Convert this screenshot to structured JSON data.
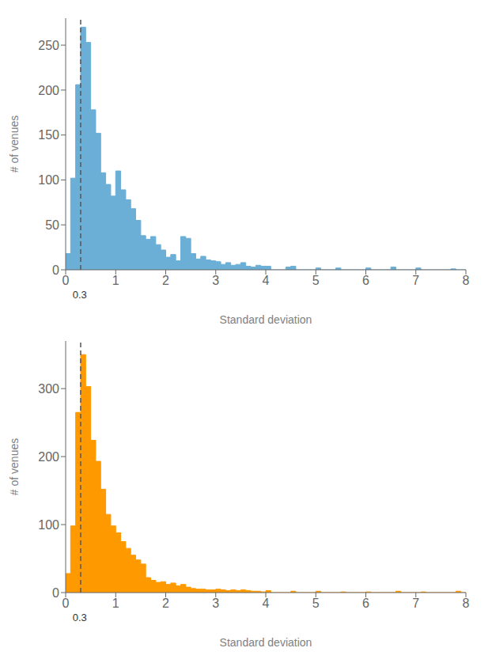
{
  "chart_data": [
    {
      "type": "histogram",
      "xlabel": "Standard deviation",
      "ylabel": "# of venues",
      "color": "#6baed6",
      "grid": false,
      "xlim": [
        0,
        8
      ],
      "ylim": [
        0,
        280
      ],
      "xticks": [
        0,
        1,
        2,
        3,
        4,
        5,
        6,
        7,
        8
      ],
      "yticks": [
        0,
        50,
        100,
        150,
        200,
        250
      ],
      "bins": [
        0,
        0.1,
        0.2,
        0.3,
        0.4,
        0.5,
        0.6,
        0.7,
        0.8,
        0.9,
        1,
        1.1,
        1.2,
        1.3,
        1.4,
        1.5,
        1.6,
        1.7,
        1.8,
        1.9,
        2,
        2.1,
        2.2,
        2.3,
        2.4,
        2.5,
        2.6,
        2.7,
        2.8,
        2.9,
        3,
        3.1,
        3.2,
        3.3,
        3.4,
        3.5,
        3.6,
        3.7,
        3.8,
        3.9,
        4,
        4.1,
        4.2,
        4.3,
        4.4,
        4.5,
        4.6,
        4.7,
        4.8,
        4.9,
        5,
        5.1,
        5.2,
        5.3,
        5.4,
        5.5,
        5.6,
        5.7,
        5.8,
        5.9,
        6,
        6.1,
        6.2,
        6.3,
        6.4,
        6.5,
        6.6,
        6.7,
        6.8,
        6.9,
        7,
        7.1,
        7.2,
        7.3,
        7.4,
        7.5,
        7.6,
        7.7,
        7.8,
        7.9,
        8
      ],
      "counts": [
        18,
        102,
        206,
        270,
        253,
        178,
        152,
        108,
        95,
        82,
        110,
        89,
        78,
        68,
        55,
        38,
        34,
        37,
        28,
        22,
        14,
        17,
        10,
        37,
        35,
        18,
        12,
        15,
        11,
        10,
        9,
        6,
        8,
        5,
        6,
        8,
        4,
        3,
        5,
        4,
        4,
        0,
        0,
        0,
        3,
        4,
        0,
        0,
        0,
        0,
        2,
        0,
        0,
        0,
        2,
        0,
        0,
        0,
        0,
        0,
        2,
        0,
        0,
        0,
        0,
        3,
        0,
        0,
        0,
        0,
        2,
        0,
        0,
        0,
        0,
        0,
        0,
        1,
        0,
        0
      ],
      "annotations": [
        {
          "text": "0.3",
          "x": 0.28
        }
      ],
      "vlines": [
        {
          "x": 0.3,
          "color": "#555555",
          "line_style": "dashed"
        }
      ]
    },
    {
      "type": "histogram",
      "xlabel": "Standard deviation",
      "ylabel": "# of venues",
      "color": "#ff9900",
      "grid": false,
      "xlim": [
        0,
        8
      ],
      "ylim": [
        0,
        370
      ],
      "xticks": [
        0,
        1,
        2,
        3,
        4,
        5,
        6,
        7,
        8
      ],
      "yticks": [
        0,
        100,
        200,
        300
      ],
      "bins": [
        0,
        0.1,
        0.2,
        0.3,
        0.4,
        0.5,
        0.6,
        0.7,
        0.8,
        0.9,
        1,
        1.1,
        1.2,
        1.3,
        1.4,
        1.5,
        1.6,
        1.7,
        1.8,
        1.9,
        2,
        2.1,
        2.2,
        2.3,
        2.4,
        2.5,
        2.6,
        2.7,
        2.8,
        2.9,
        3,
        3.1,
        3.2,
        3.3,
        3.4,
        3.5,
        3.6,
        3.7,
        3.8,
        3.9,
        4,
        4.1,
        4.2,
        4.3,
        4.4,
        4.5,
        4.6,
        4.7,
        4.8,
        4.9,
        5,
        5.1,
        5.2,
        5.3,
        5.4,
        5.5,
        5.6,
        5.7,
        5.8,
        5.9,
        6,
        6.1,
        6.2,
        6.3,
        6.4,
        6.5,
        6.6,
        6.7,
        6.8,
        6.9,
        7,
        7.1,
        7.2,
        7.3,
        7.4,
        7.5,
        7.6,
        7.7,
        7.8,
        7.9,
        8
      ],
      "counts": [
        28,
        98,
        265,
        350,
        303,
        224,
        193,
        152,
        115,
        98,
        88,
        75,
        65,
        55,
        48,
        42,
        22,
        18,
        15,
        16,
        12,
        14,
        10,
        12,
        8,
        6,
        5,
        5,
        4,
        4,
        5,
        4,
        3,
        4,
        3,
        4,
        3,
        2,
        2,
        1,
        3,
        0,
        0,
        0,
        0,
        2,
        0,
        0,
        0,
        0,
        2,
        0,
        0,
        0,
        0,
        1,
        0,
        0,
        0,
        0,
        1,
        0,
        0,
        0,
        0,
        0,
        2,
        0,
        0,
        0,
        0,
        1,
        0,
        0,
        0,
        0,
        0,
        0,
        2,
        0
      ],
      "annotations": [
        {
          "text": "0.3",
          "x": 0.28
        }
      ],
      "vlines": [
        {
          "x": 0.3,
          "color": "#555555",
          "line_style": "dashed"
        }
      ]
    }
  ]
}
